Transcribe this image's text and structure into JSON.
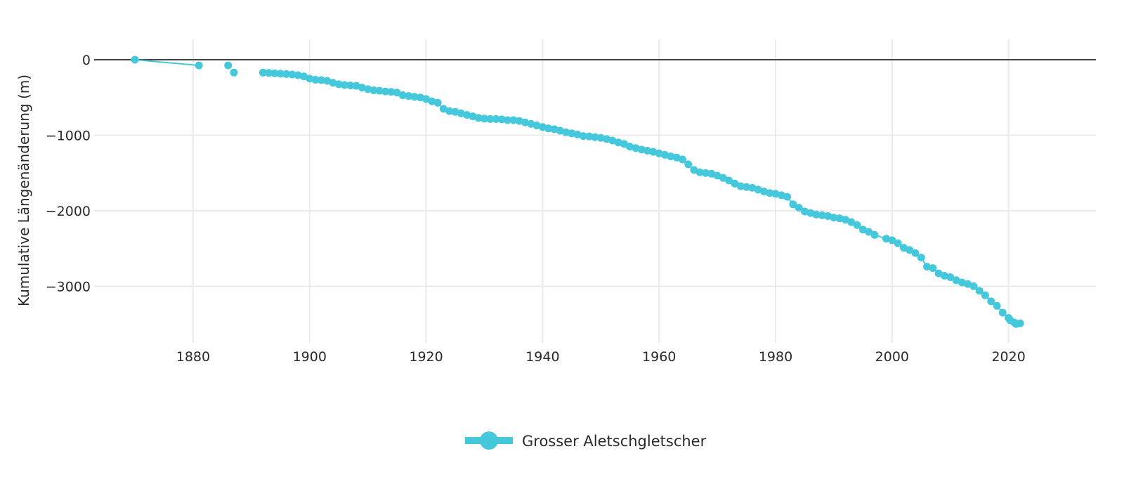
{
  "chart_data": {
    "type": "line",
    "title": "",
    "xlabel": "",
    "ylabel": "Kumulative Längenänderung (m)",
    "xlim": [
      1863,
      2035
    ],
    "ylim": [
      -3750,
      270
    ],
    "x_ticks": [
      1880,
      1900,
      1920,
      1940,
      1960,
      1980,
      2000,
      2020
    ],
    "x_tick_labels": [
      "1880",
      "1900",
      "1920",
      "1940",
      "1960",
      "1980",
      "2000",
      "2020"
    ],
    "y_ticks": [
      0,
      -1000,
      -2000,
      -3000
    ],
    "y_tick_labels": [
      "0",
      "−1000",
      "−2000",
      "−3000"
    ],
    "grid": true,
    "zero_line": true,
    "legend_position": "bottom-center",
    "series": [
      {
        "name": "Grosser Aletschgletscher",
        "color": "#45C8DC",
        "segments": [
          [
            [
              1870,
              0
            ],
            [
              1881,
              -75
            ]
          ],
          [
            [
              1886,
              -75
            ]
          ],
          [
            [
              1887,
              -170
            ]
          ],
          [
            [
              1892,
              -170
            ],
            [
              1893,
              -175
            ],
            [
              1894,
              -180
            ],
            [
              1895,
              -185
            ],
            [
              1896,
              -190
            ],
            [
              1897,
              -195
            ],
            [
              1898,
              -205
            ],
            [
              1899,
              -220
            ],
            [
              1900,
              -250
            ],
            [
              1901,
              -265
            ],
            [
              1902,
              -270
            ],
            [
              1903,
              -280
            ],
            [
              1904,
              -305
            ],
            [
              1905,
              -325
            ],
            [
              1906,
              -335
            ],
            [
              1907,
              -340
            ],
            [
              1908,
              -345
            ],
            [
              1909,
              -370
            ],
            [
              1910,
              -390
            ],
            [
              1911,
              -405
            ],
            [
              1912,
              -410
            ],
            [
              1913,
              -420
            ],
            [
              1914,
              -425
            ],
            [
              1915,
              -435
            ],
            [
              1916,
              -470
            ],
            [
              1917,
              -480
            ],
            [
              1918,
              -490
            ],
            [
              1919,
              -500
            ],
            [
              1920,
              -520
            ],
            [
              1921,
              -550
            ],
            [
              1922,
              -570
            ],
            [
              1923,
              -650
            ],
            [
              1924,
              -680
            ],
            [
              1925,
              -690
            ],
            [
              1926,
              -710
            ],
            [
              1927,
              -730
            ],
            [
              1928,
              -750
            ],
            [
              1929,
              -770
            ],
            [
              1930,
              -780
            ],
            [
              1931,
              -785
            ],
            [
              1932,
              -785
            ],
            [
              1933,
              -790
            ],
            [
              1934,
              -800
            ],
            [
              1935,
              -800
            ],
            [
              1936,
              -810
            ],
            [
              1937,
              -830
            ],
            [
              1938,
              -850
            ],
            [
              1939,
              -870
            ],
            [
              1940,
              -890
            ],
            [
              1941,
              -910
            ],
            [
              1942,
              -920
            ],
            [
              1943,
              -940
            ],
            [
              1944,
              -960
            ],
            [
              1945,
              -975
            ],
            [
              1946,
              -990
            ],
            [
              1947,
              -1010
            ],
            [
              1948,
              -1015
            ],
            [
              1949,
              -1025
            ],
            [
              1950,
              -1035
            ],
            [
              1951,
              -1050
            ],
            [
              1952,
              -1070
            ],
            [
              1953,
              -1095
            ],
            [
              1954,
              -1115
            ],
            [
              1955,
              -1150
            ],
            [
              1956,
              -1170
            ],
            [
              1957,
              -1190
            ],
            [
              1958,
              -1205
            ],
            [
              1959,
              -1220
            ],
            [
              1960,
              -1240
            ],
            [
              1961,
              -1260
            ],
            [
              1962,
              -1280
            ],
            [
              1963,
              -1295
            ],
            [
              1964,
              -1320
            ],
            [
              1965,
              -1385
            ],
            [
              1966,
              -1460
            ],
            [
              1967,
              -1490
            ],
            [
              1968,
              -1500
            ],
            [
              1969,
              -1510
            ],
            [
              1970,
              -1535
            ],
            [
              1971,
              -1565
            ],
            [
              1972,
              -1600
            ],
            [
              1973,
              -1640
            ],
            [
              1974,
              -1675
            ],
            [
              1975,
              -1685
            ],
            [
              1976,
              -1695
            ],
            [
              1977,
              -1720
            ],
            [
              1978,
              -1745
            ],
            [
              1979,
              -1765
            ],
            [
              1980,
              -1775
            ],
            [
              1981,
              -1795
            ],
            [
              1982,
              -1815
            ],
            [
              1983,
              -1915
            ],
            [
              1984,
              -1960
            ],
            [
              1985,
              -2010
            ],
            [
              1986,
              -2030
            ],
            [
              1987,
              -2050
            ],
            [
              1988,
              -2060
            ],
            [
              1989,
              -2070
            ],
            [
              1990,
              -2090
            ],
            [
              1991,
              -2100
            ],
            [
              1992,
              -2120
            ],
            [
              1993,
              -2150
            ],
            [
              1994,
              -2190
            ],
            [
              1995,
              -2250
            ],
            [
              1996,
              -2280
            ],
            [
              1997,
              -2320
            ],
            [
              1999,
              -2370
            ],
            [
              2000,
              -2390
            ],
            [
              2001,
              -2430
            ],
            [
              2002,
              -2490
            ],
            [
              2003,
              -2520
            ],
            [
              2004,
              -2560
            ],
            [
              2005,
              -2620
            ],
            [
              2006,
              -2740
            ],
            [
              2007,
              -2760
            ],
            [
              2008,
              -2830
            ],
            [
              2009,
              -2860
            ],
            [
              2010,
              -2880
            ],
            [
              2011,
              -2920
            ],
            [
              2012,
              -2950
            ],
            [
              2013,
              -2970
            ],
            [
              2014,
              -3000
            ],
            [
              2015,
              -3060
            ],
            [
              2016,
              -3120
            ],
            [
              2017,
              -3200
            ],
            [
              2018,
              -3260
            ],
            [
              2019,
              -3350
            ],
            [
              2020,
              -3420
            ],
            [
              2020.3,
              -3450
            ],
            [
              2021,
              -3480
            ],
            [
              2021.3,
              -3500
            ],
            [
              2022,
              -3490
            ]
          ]
        ]
      }
    ]
  }
}
